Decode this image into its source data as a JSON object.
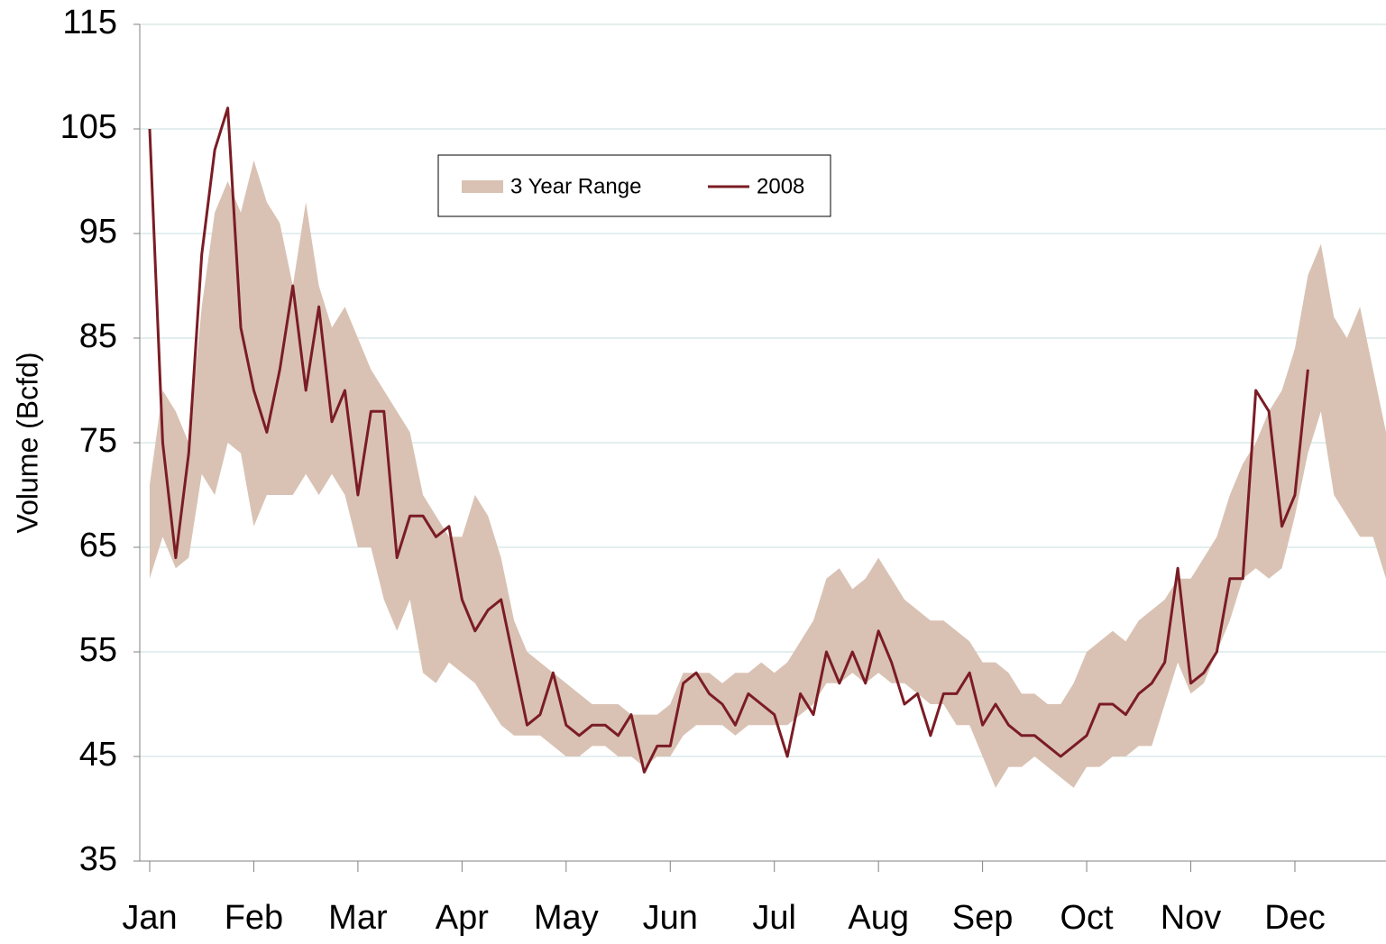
{
  "chart_data": {
    "type": "line",
    "y_label": "Volume (Bcfd)",
    "categories": [
      "Jan",
      null,
      null,
      null,
      null,
      null,
      null,
      null,
      "Feb",
      null,
      null,
      null,
      null,
      null,
      null,
      null,
      "Mar",
      null,
      null,
      null,
      null,
      null,
      null,
      null,
      "Apr",
      null,
      null,
      null,
      null,
      null,
      null,
      null,
      "May",
      null,
      null,
      null,
      null,
      null,
      null,
      null,
      "Jun",
      null,
      null,
      null,
      null,
      null,
      null,
      null,
      "Jul",
      null,
      null,
      null,
      null,
      null,
      null,
      null,
      "Aug",
      null,
      null,
      null,
      null,
      null,
      null,
      null,
      "Sep",
      null,
      null,
      null,
      null,
      null,
      null,
      null,
      "Oct",
      null,
      null,
      null,
      null,
      null,
      null,
      null,
      "Nov",
      null,
      null,
      null,
      null,
      null,
      null,
      null,
      "Dec",
      null,
      null,
      null,
      null,
      null,
      null,
      null
    ],
    "ylim": [
      35,
      115
    ],
    "yticks": [
      35,
      45,
      55,
      65,
      75,
      85,
      95,
      105,
      115
    ],
    "grid": true,
    "series": [
      {
        "name": "3 Year Range",
        "color": "#d9c2b4",
        "low": [
          62,
          66,
          63,
          64,
          72,
          70,
          75,
          74,
          67,
          70,
          70,
          70,
          72,
          70,
          72,
          70,
          65,
          65,
          60,
          57,
          60,
          53,
          52,
          54,
          53,
          52,
          50,
          48,
          47,
          47,
          47,
          46,
          45,
          45,
          46,
          46,
          45,
          45,
          44,
          45,
          45,
          47,
          48,
          48,
          48,
          47,
          48,
          48,
          48,
          48,
          49,
          50,
          52,
          52,
          53,
          52,
          53,
          52,
          52,
          51,
          50,
          50,
          48,
          48,
          45,
          42,
          44,
          44,
          45,
          44,
          43,
          42,
          44,
          44,
          45,
          45,
          46,
          46,
          50,
          54,
          51,
          52,
          55,
          58,
          62,
          63,
          62,
          63,
          68,
          74,
          78,
          70,
          68,
          66,
          66,
          62
        ],
        "high": [
          71,
          80,
          78,
          75,
          88,
          97,
          100,
          97,
          102,
          98,
          96,
          90,
          98,
          90,
          86,
          88,
          85,
          82,
          80,
          78,
          76,
          70,
          68,
          66,
          66,
          70,
          68,
          64,
          58,
          55,
          54,
          53,
          52,
          51,
          50,
          50,
          50,
          49,
          49,
          49,
          50,
          53,
          53,
          53,
          52,
          53,
          53,
          54,
          53,
          54,
          56,
          58,
          62,
          63,
          61,
          62,
          64,
          62,
          60,
          59,
          58,
          58,
          57,
          56,
          54,
          54,
          53,
          51,
          51,
          50,
          50,
          52,
          55,
          56,
          57,
          56,
          58,
          59,
          60,
          62,
          62,
          64,
          66,
          70,
          73,
          75,
          78,
          80,
          84,
          91,
          94,
          87,
          85,
          88,
          82,
          76
        ]
      },
      {
        "name": "2008",
        "color": "#7b1c24",
        "values": [
          105,
          75,
          64,
          74,
          93,
          103,
          107,
          86,
          80,
          76,
          82,
          90,
          80,
          88,
          77,
          80,
          70,
          78,
          78,
          64,
          68,
          68,
          66,
          67,
          60,
          57,
          59,
          60,
          54,
          48,
          49,
          53,
          48,
          47,
          48,
          48,
          47,
          49,
          43.5,
          46,
          46,
          52,
          53,
          51,
          50,
          48,
          51,
          50,
          49,
          45,
          51,
          49,
          55,
          52,
          55,
          52,
          57,
          54,
          50,
          51,
          47,
          51,
          51,
          53,
          48,
          50,
          48,
          47,
          47,
          46,
          45,
          46,
          47,
          50,
          50,
          49,
          51,
          52,
          54,
          63,
          52,
          53,
          55,
          62,
          62,
          80,
          78,
          67,
          70,
          82,
          null,
          null,
          null,
          null,
          null,
          null
        ]
      }
    ],
    "legend": "upper-center"
  }
}
